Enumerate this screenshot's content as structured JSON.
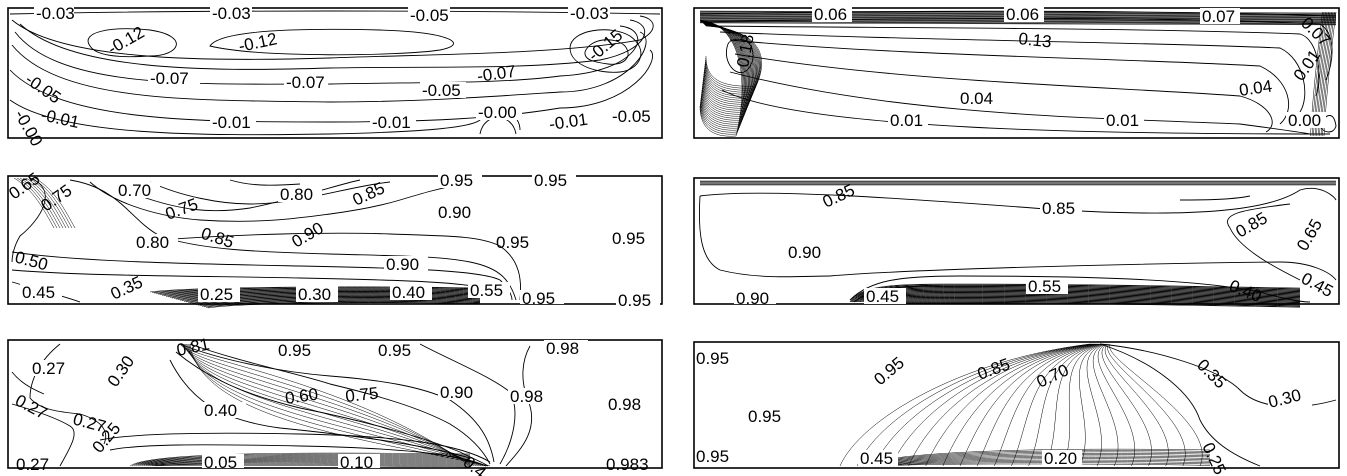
{
  "panels": [
    {
      "id": "stream-left",
      "labels": [
        "-0.03",
        "-0.03",
        "-0.05",
        "-0.03",
        "-0.12",
        "-0.12",
        "-0.15",
        "-0.05",
        "-0.07",
        "-0.07",
        "-0.07",
        "-0.05",
        "-0.00",
        "-0.01",
        "-0.01",
        "-0.01",
        "-0.00",
        "-0.01",
        "-0.05"
      ]
    },
    {
      "id": "stream-right",
      "labels": [
        "0.06",
        "0.06",
        "0.07",
        "0.07",
        "0.18",
        "0.13",
        "0.01",
        "0.04",
        "0.04",
        "0.01",
        "0.01",
        "0.00"
      ]
    },
    {
      "id": "temp-left",
      "labels": [
        "0.65",
        "0.70",
        "0.75",
        "0.75",
        "0.80",
        "0.85",
        "0.95",
        "0.95",
        "0.90",
        "0.80",
        "0.85",
        "0.90",
        "0.95",
        "0.95",
        "0.50",
        "0.90",
        "0.45",
        "0.35",
        "0.25",
        "0.30",
        "0.40",
        "0.55",
        "0.95",
        "0.95"
      ]
    },
    {
      "id": "temp-right",
      "labels": [
        "0.85",
        "0.85",
        "0.85",
        "0.65",
        "0.90",
        "0.45",
        "0.90",
        "0.45",
        "0.55",
        "0.40"
      ]
    },
    {
      "id": "conc-left",
      "labels": [
        "0.27",
        "0.30",
        "0.81",
        "0.95",
        "0.95",
        "0.98",
        "0.27",
        "0.27",
        "0.40",
        "0.60",
        "0.75",
        "0.90",
        "0.98",
        "0.98",
        "0.25",
        "0.27",
        "0.05",
        "0.10",
        "0.4",
        "0.983"
      ]
    },
    {
      "id": "conc-right",
      "labels": [
        "0.95",
        "0.95",
        "0.85",
        "0.70",
        "0.35",
        "0.95",
        "0.30",
        "0.95",
        "0.45",
        "0.20",
        "0.25"
      ]
    }
  ]
}
